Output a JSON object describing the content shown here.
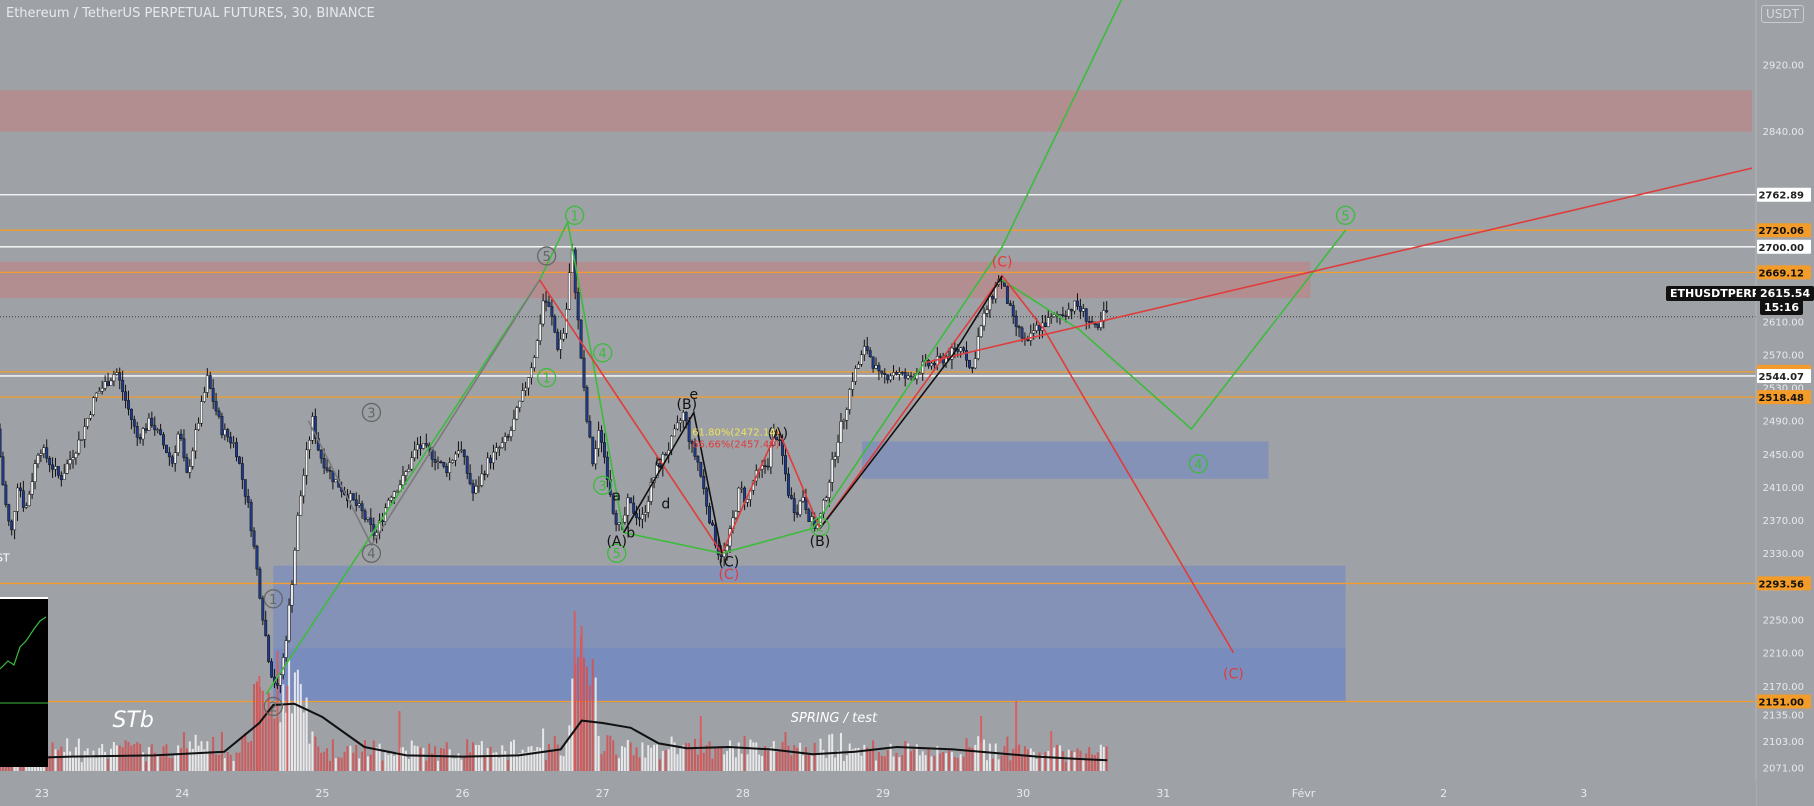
{
  "header": {
    "title": "Ethereum / TetherUS PERPETUAL FUTURES, 30, BINANCE",
    "currency": "USDT"
  },
  "ticker": {
    "symbol": "ETHUSDTPERP",
    "price": "2615.54",
    "countdown": "15:16"
  },
  "chart_data": {
    "type": "candlestick",
    "ylim": [
      2055,
      2998
    ],
    "y_ticks": [
      2071,
      2103,
      2135,
      2170,
      2210,
      2250,
      2290,
      2330,
      2370,
      2410,
      2450,
      2490,
      2530,
      2570,
      2610,
      2840,
      2920
    ],
    "y_tick_labels": [
      "2071.00",
      "2103.00",
      "2135.00",
      "2170.00",
      "2210.00",
      "2250.00",
      "2290.00",
      "2330.00",
      "2370.00",
      "2410.00",
      "2450.00",
      "2490.00",
      "2530.00",
      "2570.00",
      "2610.00",
      "2840.00",
      "2920.00"
    ],
    "x_labels": [
      {
        "day": 23,
        "label": "23"
      },
      {
        "day": 24,
        "label": "24"
      },
      {
        "day": 25,
        "label": "25"
      },
      {
        "day": 26,
        "label": "26"
      },
      {
        "day": 27,
        "label": "27"
      },
      {
        "day": 28,
        "label": "28"
      },
      {
        "day": 29,
        "label": "29"
      },
      {
        "day": 30,
        "label": "30"
      },
      {
        "day": 31,
        "label": "31"
      },
      {
        "day": 32,
        "label": "Févr"
      },
      {
        "day": 33,
        "label": "2"
      },
      {
        "day": 34,
        "label": "3"
      }
    ],
    "x_range_days": [
      22.7,
      35.2
    ],
    "price_path": [
      [
        22.7,
        2480
      ],
      [
        22.75,
        2400
      ],
      [
        22.8,
        2350
      ],
      [
        22.85,
        2420
      ],
      [
        22.9,
        2380
      ],
      [
        23.0,
        2460
      ],
      [
        23.15,
        2420
      ],
      [
        23.3,
        2470
      ],
      [
        23.4,
        2520
      ],
      [
        23.55,
        2550
      ],
      [
        23.7,
        2470
      ],
      [
        23.8,
        2490
      ],
      [
        23.95,
        2440
      ],
      [
        24.0,
        2480
      ],
      [
        24.05,
        2420
      ],
      [
        24.1,
        2460
      ],
      [
        24.2,
        2540
      ],
      [
        24.3,
        2480
      ],
      [
        24.4,
        2460
      ],
      [
        24.5,
        2380
      ],
      [
        24.6,
        2250
      ],
      [
        24.65,
        2190
      ],
      [
        24.7,
        2165
      ],
      [
        24.75,
        2210
      ],
      [
        24.8,
        2290
      ],
      [
        24.85,
        2380
      ],
      [
        24.9,
        2440
      ],
      [
        24.95,
        2490
      ],
      [
        25.0,
        2450
      ],
      [
        25.1,
        2420
      ],
      [
        25.2,
        2400
      ],
      [
        25.3,
        2380
      ],
      [
        25.4,
        2350
      ],
      [
        25.5,
        2400
      ],
      [
        25.6,
        2420
      ],
      [
        25.7,
        2460
      ],
      [
        25.8,
        2450
      ],
      [
        25.9,
        2430
      ],
      [
        26.0,
        2460
      ],
      [
        26.1,
        2400
      ],
      [
        26.2,
        2440
      ],
      [
        26.35,
        2470
      ],
      [
        26.45,
        2520
      ],
      [
        26.55,
        2580
      ],
      [
        26.6,
        2640
      ],
      [
        26.65,
        2620
      ],
      [
        26.7,
        2580
      ],
      [
        26.75,
        2600
      ],
      [
        26.8,
        2700
      ],
      [
        26.85,
        2600
      ],
      [
        26.9,
        2500
      ],
      [
        26.95,
        2440
      ],
      [
        27.0,
        2480
      ],
      [
        27.05,
        2430
      ],
      [
        27.1,
        2380
      ],
      [
        27.15,
        2355
      ],
      [
        27.2,
        2390
      ],
      [
        27.3,
        2370
      ],
      [
        27.35,
        2400
      ],
      [
        27.4,
        2430
      ],
      [
        27.5,
        2460
      ],
      [
        27.6,
        2500
      ],
      [
        27.65,
        2460
      ],
      [
        27.7,
        2440
      ],
      [
        27.75,
        2400
      ],
      [
        27.8,
        2360
      ],
      [
        27.85,
        2330
      ],
      [
        27.9,
        2330
      ],
      [
        27.95,
        2370
      ],
      [
        28.0,
        2410
      ],
      [
        28.05,
        2390
      ],
      [
        28.1,
        2420
      ],
      [
        28.2,
        2440
      ],
      [
        28.25,
        2480
      ],
      [
        28.3,
        2450
      ],
      [
        28.35,
        2400
      ],
      [
        28.4,
        2380
      ],
      [
        28.45,
        2400
      ],
      [
        28.5,
        2370
      ],
      [
        28.55,
        2360
      ],
      [
        28.6,
        2390
      ],
      [
        28.65,
        2430
      ],
      [
        28.7,
        2470
      ],
      [
        28.75,
        2500
      ],
      [
        28.8,
        2540
      ],
      [
        28.85,
        2560
      ],
      [
        28.9,
        2580
      ],
      [
        28.95,
        2560
      ],
      [
        29.0,
        2540
      ],
      [
        29.1,
        2550
      ],
      [
        29.2,
        2540
      ],
      [
        29.3,
        2555
      ],
      [
        29.4,
        2560
      ],
      [
        29.5,
        2570
      ],
      [
        29.6,
        2580
      ],
      [
        29.65,
        2545
      ],
      [
        29.7,
        2590
      ],
      [
        29.75,
        2620
      ],
      [
        29.8,
        2640
      ],
      [
        29.85,
        2665
      ],
      [
        29.9,
        2640
      ],
      [
        29.95,
        2610
      ],
      [
        30.0,
        2595
      ],
      [
        30.05,
        2580
      ],
      [
        30.1,
        2600
      ],
      [
        30.2,
        2610
      ],
      [
        30.3,
        2620
      ],
      [
        30.4,
        2630
      ],
      [
        30.5,
        2610
      ],
      [
        30.55,
        2595
      ],
      [
        30.6,
        2620
      ]
    ],
    "volume_average_path": [
      [
        22.7,
        0.1
      ],
      [
        23.2,
        0.12
      ],
      [
        23.8,
        0.13
      ],
      [
        24.3,
        0.16
      ],
      [
        24.55,
        0.4
      ],
      [
        24.65,
        0.55
      ],
      [
        24.8,
        0.56
      ],
      [
        25.0,
        0.45
      ],
      [
        25.3,
        0.2
      ],
      [
        25.6,
        0.13
      ],
      [
        26.0,
        0.12
      ],
      [
        26.4,
        0.13
      ],
      [
        26.7,
        0.18
      ],
      [
        26.85,
        0.42
      ],
      [
        27.0,
        0.4
      ],
      [
        27.2,
        0.36
      ],
      [
        27.4,
        0.23
      ],
      [
        27.6,
        0.19
      ],
      [
        27.9,
        0.2
      ],
      [
        28.2,
        0.18
      ],
      [
        28.5,
        0.14
      ],
      [
        28.8,
        0.16
      ],
      [
        29.1,
        0.2
      ],
      [
        29.5,
        0.18
      ],
      [
        29.8,
        0.15
      ],
      [
        30.1,
        0.12
      ],
      [
        30.4,
        0.1
      ],
      [
        30.6,
        0.09
      ]
    ],
    "horizontal_lines": [
      {
        "price": 2762.89,
        "label": "2762.89",
        "color": "#ffffff",
        "label_bg": "#ffffff",
        "label_color": "#222222"
      },
      {
        "price": 2720.06,
        "label": "2720.06",
        "color": "#f39c2a",
        "label_bg": "#f39c2a",
        "label_color": "#111111"
      },
      {
        "price": 2700.0,
        "label": "2700.00",
        "color": "#ffffff",
        "label_bg": "#ffffff",
        "label_color": "#222222"
      },
      {
        "price": 2669.12,
        "label": "2669.12",
        "color": "#f39c2a",
        "label_bg": "#f39c2a",
        "label_color": "#111111"
      },
      {
        "price": 2549.0,
        "label": "2549.00",
        "color": "#f39c2a",
        "label_bg": "#f39c2a",
        "label_color": "#111111"
      },
      {
        "price": 2544.07,
        "label": "2544.07",
        "color": "#ffffff",
        "label_bg": "#ffffff",
        "label_color": "#222222"
      },
      {
        "price": 2518.48,
        "label": "2518.48",
        "color": "#f39c2a",
        "label_bg": "#f39c2a",
        "label_color": "#111111"
      },
      {
        "price": 2293.56,
        "label": "2293.56",
        "color": "#f39c2a",
        "label_bg": "#f39c2a",
        "label_color": "#111111"
      },
      {
        "price": 2151.0,
        "label": "2151.00",
        "color": "#f39c2a",
        "label_bg": "#f39c2a",
        "label_color": "#111111"
      }
    ],
    "zones": [
      {
        "from_day": 22.7,
        "to_day": 35.2,
        "low": 2839,
        "high": 2889,
        "color": "rgba(205,120,120,0.45)"
      },
      {
        "from_day": 22.7,
        "to_day": 32.05,
        "low": 2638,
        "high": 2682,
        "color": "rgba(205,120,120,0.45)"
      },
      {
        "from_day": 28.85,
        "to_day": 31.75,
        "low": 2420,
        "high": 2465,
        "color": "rgba(95,125,210,0.40)"
      },
      {
        "from_day": 24.65,
        "to_day": 32.3,
        "low": 2150,
        "high": 2315,
        "color": "rgba(95,125,210,0.40)"
      },
      {
        "from_day": 24.65,
        "to_day": 32.3,
        "low": 2150,
        "high": 2215,
        "color": "rgba(95,125,210,0.30)"
      }
    ],
    "wave_paths": [
      {
        "color": "#3dbb3d",
        "points": [
          [
            24.6,
            2160
          ],
          [
            26.55,
            2660
          ],
          [
            26.75,
            2730
          ],
          [
            27.15,
            2355
          ],
          [
            27.85,
            2330
          ],
          [
            28.5,
            2360
          ],
          [
            29.85,
            2700
          ],
          [
            30.7,
            2998
          ]
        ]
      },
      {
        "color": "#3dbb3d",
        "points": [
          [
            29.85,
            2660
          ],
          [
            30.4,
            2600
          ],
          [
            31.2,
            2480
          ],
          [
            32.3,
            2720
          ]
        ]
      },
      {
        "color": "#7a7a7a",
        "points": [
          [
            24.9,
            2490
          ],
          [
            25.35,
            2340
          ],
          [
            26.55,
            2660
          ]
        ]
      },
      {
        "color": "#e03c3c",
        "points": [
          [
            26.55,
            2660
          ],
          [
            27.85,
            2330
          ],
          [
            28.25,
            2480
          ],
          [
            28.55,
            2360
          ],
          [
            29.85,
            2665
          ],
          [
            30.15,
            2600
          ],
          [
            31.5,
            2210
          ]
        ]
      },
      {
        "color": "#e03c3c",
        "points": [
          [
            29.3,
            2560
          ],
          [
            35.2,
            2795
          ]
        ]
      },
      {
        "color": "#111111",
        "points": [
          [
            27.15,
            2355
          ],
          [
            27.65,
            2500
          ],
          [
            27.85,
            2330
          ]
        ]
      },
      {
        "color": "#111111",
        "points": [
          [
            28.55,
            2360
          ],
          [
            29.5,
            2570
          ],
          [
            29.85,
            2665
          ]
        ]
      }
    ],
    "wave_labels": [
      {
        "day": 26.8,
        "price": 2738,
        "text": "1",
        "color": "#3dbb3d",
        "circle": true
      },
      {
        "day": 26.6,
        "price": 2689,
        "text": "5",
        "color": "#666666",
        "circle": true
      },
      {
        "day": 32.3,
        "price": 2738,
        "text": "5",
        "color": "#3dbb3d",
        "circle": true
      },
      {
        "day": 31.25,
        "price": 2438,
        "text": "4",
        "color": "#3dbb3d",
        "circle": true
      },
      {
        "day": 25.35,
        "price": 2500,
        "text": "3",
        "color": "#666666",
        "circle": true
      },
      {
        "day": 25.35,
        "price": 2330,
        "text": "4",
        "color": "#666666",
        "circle": true
      },
      {
        "day": 24.65,
        "price": 2275,
        "text": "1",
        "color": "#666666",
        "circle": true
      },
      {
        "day": 24.65,
        "price": 2145,
        "text": "2",
        "color": "#666666",
        "circle": true
      },
      {
        "day": 26.6,
        "price": 2542,
        "text": "1",
        "color": "#3dbb3d",
        "circle": true
      },
      {
        "day": 27.0,
        "price": 2412,
        "text": "3",
        "color": "#3dbb3d",
        "circle": true
      },
      {
        "day": 27.1,
        "price": 2330,
        "text": "5",
        "color": "#3dbb3d",
        "circle": true
      },
      {
        "day": 27.0,
        "price": 2572,
        "text": "4",
        "color": "#3dbb3d",
        "circle": true
      },
      {
        "day": 28.55,
        "price": 2362,
        "text": "2",
        "color": "#3dbb3d",
        "circle": true
      },
      {
        "day": 27.1,
        "price": 2345,
        "text": "(A)",
        "color": "#111111",
        "circle": false
      },
      {
        "day": 27.6,
        "price": 2510,
        "text": "(B)",
        "color": "#111111",
        "circle": false
      },
      {
        "day": 27.9,
        "price": 2320,
        "text": "(C)",
        "color": "#111111",
        "circle": false
      },
      {
        "day": 28.25,
        "price": 2475,
        "text": "(A)",
        "color": "#111111",
        "circle": false
      },
      {
        "day": 28.55,
        "price": 2345,
        "text": "(B)",
        "color": "#111111",
        "circle": false
      },
      {
        "day": 29.85,
        "price": 2682,
        "text": "(C)",
        "color": "#e03c3c",
        "circle": false
      },
      {
        "day": 31.5,
        "price": 2185,
        "text": "(C)",
        "color": "#e03c3c",
        "circle": false
      },
      {
        "day": 27.9,
        "price": 2305,
        "text": "(C)",
        "color": "#e03c3c",
        "circle": false
      },
      {
        "day": 27.1,
        "price": 2400,
        "text": "a",
        "color": "#111111",
        "circle": false
      },
      {
        "day": 27.2,
        "price": 2355,
        "text": "b",
        "color": "#111111",
        "circle": false
      },
      {
        "day": 27.4,
        "price": 2440,
        "text": "c",
        "color": "#111111",
        "circle": false
      },
      {
        "day": 27.45,
        "price": 2390,
        "text": "d",
        "color": "#111111",
        "circle": false
      },
      {
        "day": 27.65,
        "price": 2522,
        "text": "e",
        "color": "#111111",
        "circle": false
      }
    ],
    "annotations": [
      {
        "day": 27.95,
        "price": 2472.14,
        "text": "61.80%(2472.14)",
        "color": "#f2e35a",
        "size": 10
      },
      {
        "day": 27.95,
        "price": 2457.49,
        "text": "66.66%(2457.49)",
        "color": "#e03c3c",
        "size": 10
      },
      {
        "day": 23.65,
        "price": 2120,
        "text": "STb",
        "color": "#ffffff",
        "size": 22
      },
      {
        "day": 28.65,
        "price": 2126,
        "text": "SPRING / test",
        "color": "#ffffff",
        "size": 13
      },
      {
        "day": 22.72,
        "price": 2320,
        "text": "ST",
        "color": "#ffffff",
        "size": 11
      }
    ]
  }
}
